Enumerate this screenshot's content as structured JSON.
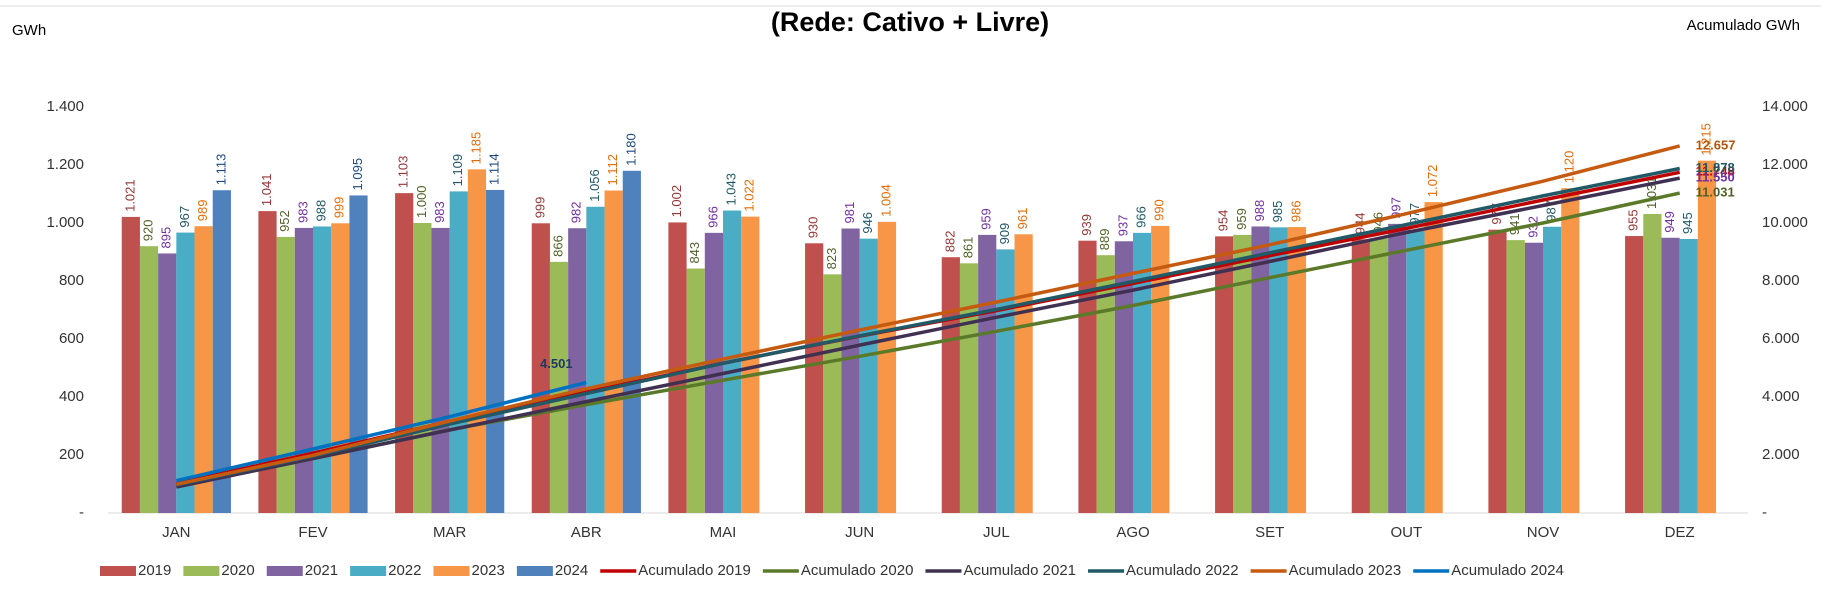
{
  "chart_data": {
    "type": "bar",
    "title": "(Rede: Cativo + Livre)",
    "y_label": "GWh",
    "y2_label": "Acumulado GWh",
    "categories": [
      "JAN",
      "FEV",
      "MAR",
      "ABR",
      "MAI",
      "JUN",
      "JUL",
      "AGO",
      "SET",
      "OUT",
      "NOV",
      "DEZ"
    ],
    "ylim": [
      0,
      1400
    ],
    "yticks": [
      {
        "value": 0,
        "label": "-"
      },
      200,
      400,
      600,
      800,
      {
        "value": 1000,
        "label": "1.000"
      },
      {
        "value": 1200,
        "label": "1.200"
      },
      {
        "value": 1400,
        "label": "1.400"
      }
    ],
    "y2lim": [
      0,
      14000
    ],
    "y2ticks": [
      {
        "value": 0,
        "label": "-"
      },
      {
        "value": 2000,
        "label": "2.000"
      },
      {
        "value": 4000,
        "label": "4.000"
      },
      {
        "value": 6000,
        "label": "6.000"
      },
      {
        "value": 8000,
        "label": "8.000"
      },
      {
        "value": 10000,
        "label": "10.000"
      },
      {
        "value": 12000,
        "label": "12.000"
      },
      {
        "value": 14000,
        "label": "14.000"
      }
    ],
    "grid": false,
    "legend": "bottom",
    "series": [
      {
        "name": "2019",
        "type": "bar",
        "color": "#c0504d",
        "label_color": "#943634",
        "values": [
          1021,
          1041,
          1103,
          999,
          1002,
          930,
          882,
          939,
          954,
          944,
          977,
          955
        ],
        "value_labels": [
          "1.021",
          "1.041",
          "1.103",
          "999",
          "1.002",
          "930",
          "882",
          "939",
          "954",
          "944",
          "977",
          "955"
        ]
      },
      {
        "name": "2020",
        "type": "bar",
        "color": "#9bbb59",
        "label_color": "#4f6228",
        "values": [
          920,
          952,
          1000,
          866,
          843,
          823,
          861,
          889,
          959,
          946,
          941,
          1031
        ],
        "value_labels": [
          "920",
          "952",
          "1.000",
          "866",
          "843",
          "823",
          "861",
          "889",
          "959",
          "946",
          "941",
          "1.031"
        ]
      },
      {
        "name": "2021",
        "type": "bar",
        "color": "#8064a2",
        "label_color": "#7030a0",
        "values": [
          895,
          983,
          983,
          982,
          966,
          981,
          959,
          937,
          988,
          997,
          932,
          949
        ],
        "value_labels": [
          "895",
          "983",
          "983",
          "982",
          "966",
          "981",
          "959",
          "937",
          "988",
          "997",
          "932",
          "949"
        ]
      },
      {
        "name": "2022",
        "type": "bar",
        "color": "#4bacc6",
        "label_color": "#215967",
        "values": [
          967,
          988,
          1109,
          1056,
          1043,
          946,
          909,
          966,
          985,
          977,
          987,
          945
        ],
        "value_labels": [
          "967",
          "988",
          "1.109",
          "1.056",
          "1.043",
          "946",
          "909",
          "966",
          "985",
          "977",
          "987",
          "945"
        ]
      },
      {
        "name": "2023",
        "type": "bar",
        "color": "#f79646",
        "label_color": "#e46c0a",
        "values": [
          989,
          999,
          1185,
          1112,
          1022,
          1004,
          961,
          990,
          986,
          1072,
          1120,
          1215
        ],
        "value_labels": [
          "989",
          "999",
          "1.185",
          "1.112",
          "1.022",
          "1.004",
          "961",
          "990",
          "986",
          "1.072",
          "1.120",
          "1.215"
        ]
      },
      {
        "name": "2024",
        "type": "bar",
        "color": "#4f81bd",
        "label_color": "#1f497d",
        "values": [
          1113,
          1095,
          1114,
          1180,
          null,
          null,
          null,
          null,
          null,
          null,
          null,
          null
        ],
        "value_labels": [
          "1.113",
          "1.095",
          "1.114",
          "1.180",
          null,
          null,
          null,
          null,
          null,
          null,
          null,
          null
        ]
      },
      {
        "name": "Acumulado 2019",
        "type": "line",
        "axis": "y2",
        "color": "#c00000",
        "label_color": "#c00000",
        "values": [
          1021,
          2062,
          3165,
          4164,
          5166,
          6096,
          6978,
          7917,
          8871,
          9815,
          10792,
          11748
        ],
        "value_labels": [
          null,
          null,
          null,
          null,
          null,
          null,
          null,
          null,
          null,
          null,
          null,
          "11.748"
        ]
      },
      {
        "name": "Acumulado 2020",
        "type": "line",
        "axis": "y2",
        "color": "#5a7a2a",
        "label_color": "#4f6228",
        "values": [
          920,
          1872,
          2872,
          3738,
          4581,
          5404,
          6265,
          7154,
          8113,
          9059,
          10000,
          11031
        ],
        "value_labels": [
          null,
          null,
          null,
          null,
          null,
          null,
          null,
          null,
          null,
          null,
          null,
          "11.031"
        ]
      },
      {
        "name": "Acumulado 2021",
        "type": "line",
        "axis": "y2",
        "color": "#403152",
        "label_color": "#7030a0",
        "values": [
          895,
          1878,
          2861,
          3843,
          4809,
          5790,
          6749,
          7686,
          8674,
          9671,
          10603,
          11550
        ],
        "value_labels": [
          null,
          null,
          null,
          null,
          null,
          null,
          null,
          null,
          null,
          null,
          null,
          "11.550"
        ]
      },
      {
        "name": "Acumulado 2022",
        "type": "line",
        "axis": "y2",
        "color": "#215967",
        "label_color": "#215967",
        "values": [
          967,
          1955,
          3064,
          4120,
          5163,
          6109,
          7018,
          7984,
          8969,
          9946,
          10933,
          11878
        ],
        "value_labels": [
          null,
          null,
          null,
          null,
          null,
          null,
          null,
          null,
          null,
          null,
          null,
          "11.878"
        ]
      },
      {
        "name": "Acumulado 2023",
        "type": "line",
        "axis": "y2",
        "color": "#c55a11",
        "label_color": "#b35409",
        "values": [
          989,
          1988,
          3173,
          4285,
          5307,
          6311,
          7272,
          8262,
          9248,
          10320,
          11440,
          12657
        ],
        "value_labels": [
          null,
          null,
          null,
          null,
          null,
          null,
          null,
          null,
          null,
          null,
          null,
          "12.657"
        ]
      },
      {
        "name": "Acumulado 2024",
        "type": "line",
        "axis": "y2",
        "color": "#0070c0",
        "label_color": "#1f3864",
        "values": [
          1113,
          2208,
          3322,
          4501,
          null,
          null,
          null,
          null,
          null,
          null,
          null,
          null
        ],
        "value_labels": [
          null,
          null,
          null,
          "4.501",
          null,
          null,
          null,
          null,
          null,
          null,
          null,
          null
        ]
      }
    ]
  }
}
